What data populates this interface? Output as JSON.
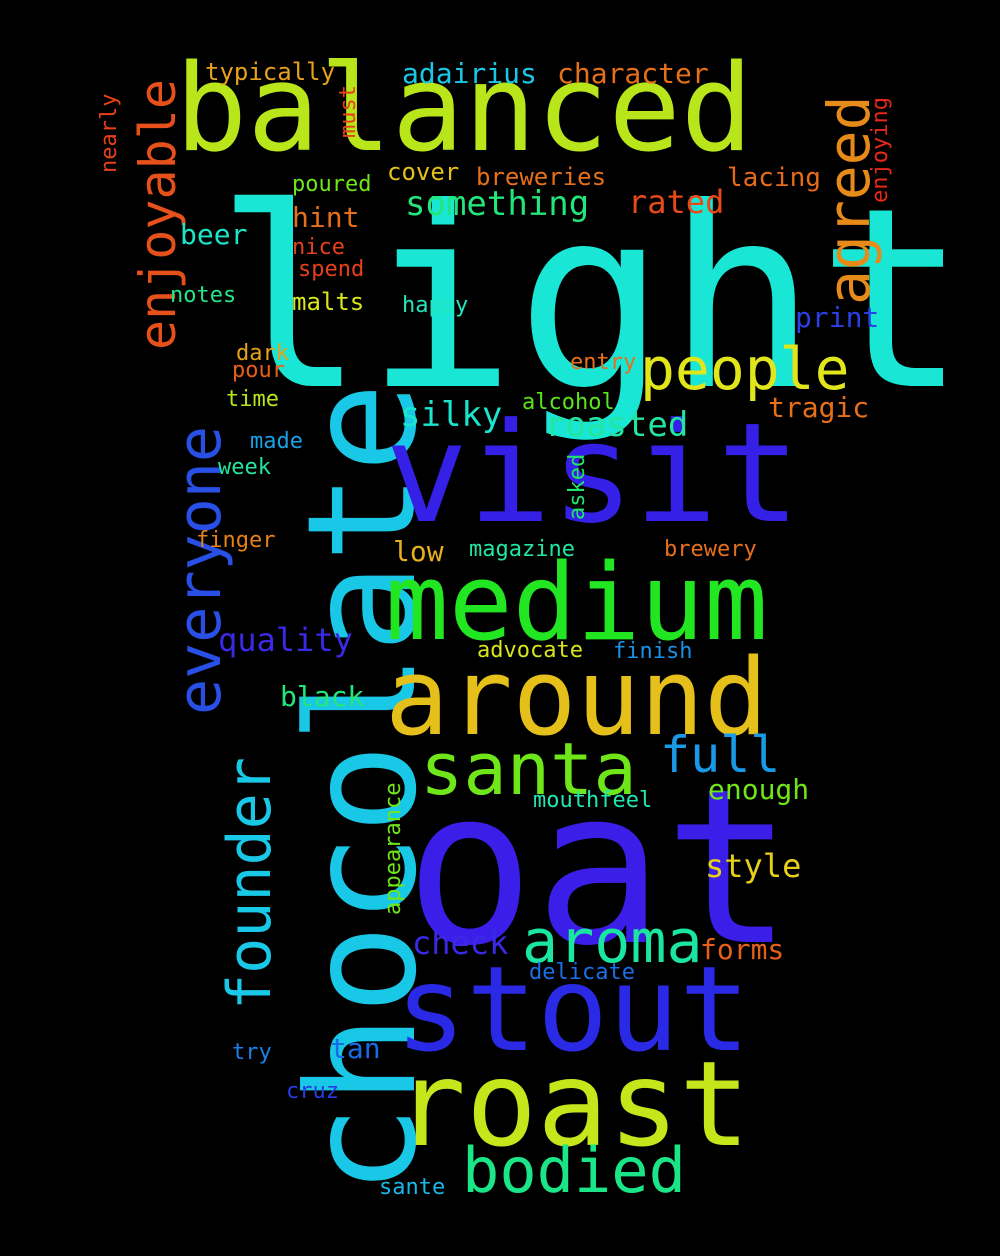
{
  "words": [
    {
      "text": "light",
      "color": "#19e6d4"
    },
    {
      "text": "oat",
      "color": "#3b1ee8"
    },
    {
      "text": "chocolate",
      "color": "#19c8e6"
    },
    {
      "text": "balanced",
      "color": "#b8e61a"
    },
    {
      "text": "visit",
      "color": "#3420e6"
    },
    {
      "text": "medium",
      "color": "#22e622"
    },
    {
      "text": "around",
      "color": "#e6c01a"
    },
    {
      "text": "stout",
      "color": "#2a2ae6"
    },
    {
      "text": "roast",
      "color": "#c4e61a"
    },
    {
      "text": "santa",
      "color": "#6ee61a"
    },
    {
      "text": "bodied",
      "color": "#1ae688"
    },
    {
      "text": "aroma",
      "color": "#1ae6a0"
    },
    {
      "text": "people",
      "color": "#e0e61a"
    },
    {
      "text": "everyone",
      "color": "#2850e6"
    },
    {
      "text": "founder",
      "color": "#19c8e6"
    },
    {
      "text": "agreed",
      "color": "#e68a1a"
    },
    {
      "text": "enjoyable",
      "color": "#e6501a"
    },
    {
      "text": "full",
      "color": "#1a9ae6"
    },
    {
      "text": "something",
      "color": "#22e67a"
    },
    {
      "text": "roasted",
      "color": "#22e6a0"
    },
    {
      "text": "silky",
      "color": "#1ae6d0"
    },
    {
      "text": "quality",
      "color": "#3a2ae6"
    },
    {
      "text": "check",
      "color": "#3a2ae6"
    },
    {
      "text": "style",
      "color": "#e6d01a"
    },
    {
      "text": "rated",
      "color": "#e64a1a"
    },
    {
      "text": "character",
      "color": "#e6701a"
    },
    {
      "text": "adairius",
      "color": "#19c8e6"
    },
    {
      "text": "print",
      "color": "#2a40e6"
    },
    {
      "text": "tragic",
      "color": "#e6701a"
    },
    {
      "text": "forms",
      "color": "#e6601a"
    },
    {
      "text": "enough",
      "color": "#6ee61a"
    },
    {
      "text": "tan",
      "color": "#1a6ae6"
    },
    {
      "text": "black",
      "color": "#22e67a"
    },
    {
      "text": "hint",
      "color": "#e6701a"
    },
    {
      "text": "lacing",
      "color": "#e66a1a"
    },
    {
      "text": "beer",
      "color": "#19e6c8"
    },
    {
      "text": "breweries",
      "color": "#e6701a"
    },
    {
      "text": "cover",
      "color": "#e6c01a"
    },
    {
      "text": "typically",
      "color": "#e6a21a"
    },
    {
      "text": "poured",
      "color": "#6ee61a"
    },
    {
      "text": "nice",
      "color": "#e6401a"
    },
    {
      "text": "spend",
      "color": "#e6401a"
    },
    {
      "text": "notes",
      "color": "#22e68a"
    },
    {
      "text": "malts",
      "color": "#d8e61a"
    },
    {
      "text": "happy",
      "color": "#22e6c0"
    },
    {
      "text": "dark",
      "color": "#e6a21a"
    },
    {
      "text": "pour",
      "color": "#e6601a"
    },
    {
      "text": "time",
      "color": "#b8e61a"
    },
    {
      "text": "entry",
      "color": "#e6701a"
    },
    {
      "text": "alcohol",
      "color": "#5ae61a"
    },
    {
      "text": "made",
      "color": "#1aa0e6"
    },
    {
      "text": "week",
      "color": "#22e6a0"
    },
    {
      "text": "finger",
      "color": "#e6801a"
    },
    {
      "text": "low",
      "color": "#e6b01a"
    },
    {
      "text": "magazine",
      "color": "#22e6a0"
    },
    {
      "text": "brewery",
      "color": "#e6701a"
    },
    {
      "text": "advocate",
      "color": "#d8e61a"
    },
    {
      "text": "finish",
      "color": "#1a90e6"
    },
    {
      "text": "mouthfeel",
      "color": "#22e6b0"
    },
    {
      "text": "delicate",
      "color": "#1a70e6"
    },
    {
      "text": "try",
      "color": "#1a80e6"
    },
    {
      "text": "cruz",
      "color": "#2a3ae6"
    },
    {
      "text": "sante",
      "color": "#19b8e6"
    },
    {
      "text": "nearly",
      "color": "#e6401a"
    },
    {
      "text": "must",
      "color": "#e6401a"
    },
    {
      "text": "enjoying",
      "color": "#e6281a"
    },
    {
      "text": "asked",
      "color": "#22e66a"
    },
    {
      "text": "appearance",
      "color": "#6ee61a"
    }
  ]
}
